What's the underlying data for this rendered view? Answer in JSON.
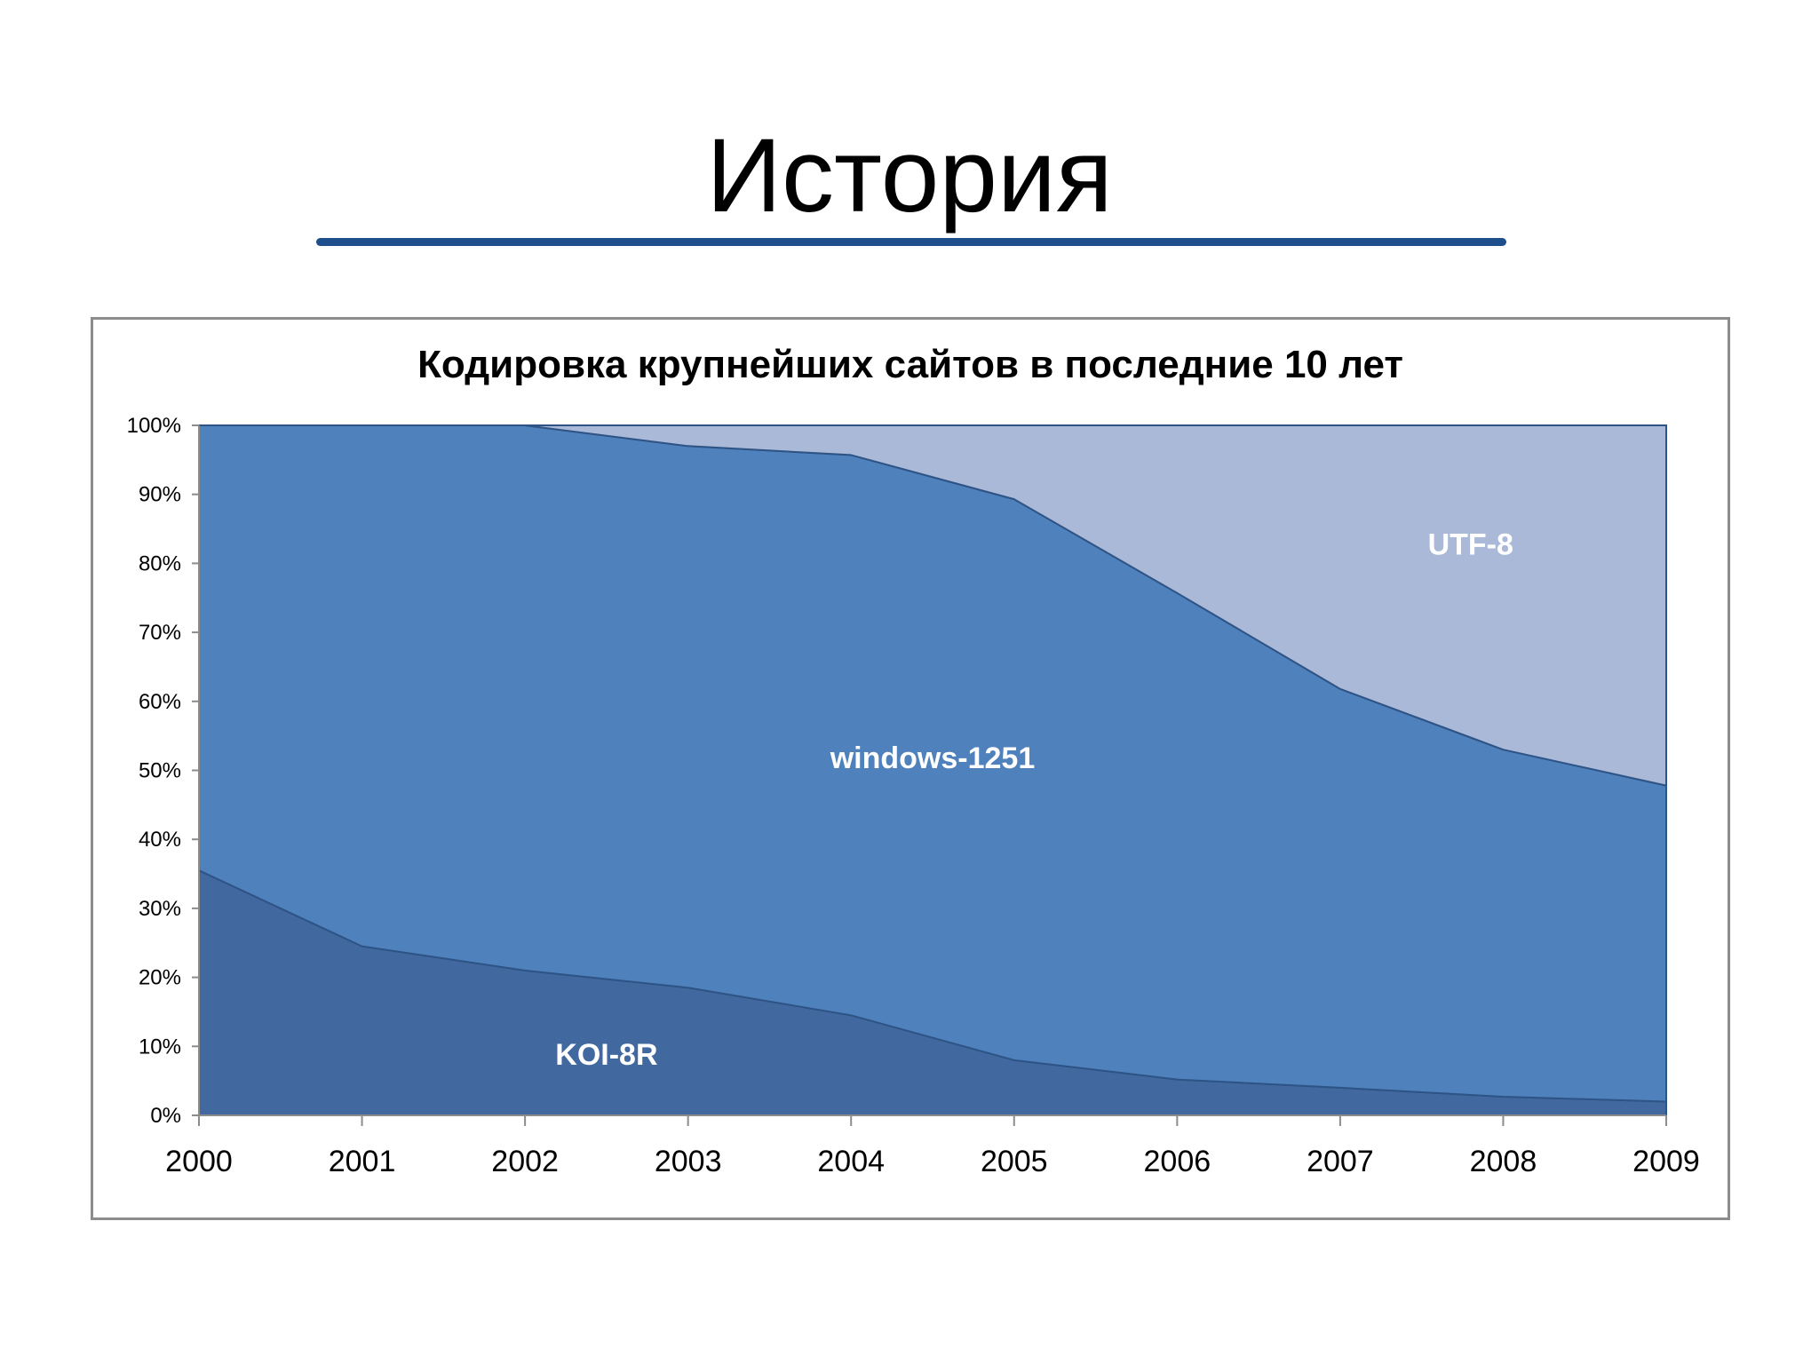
{
  "slide": {
    "title": "История"
  },
  "chart_data": {
    "type": "area",
    "stacked": "percent",
    "title": "Кодировка крупнейших сайтов в последние 10 лет",
    "xlabel": "",
    "ylabel": "",
    "ylim": [
      0,
      100
    ],
    "categories": [
      "2000",
      "2001",
      "2002",
      "2003",
      "2004",
      "2005",
      "2006",
      "2007",
      "2008",
      "2009"
    ],
    "y_ticks": [
      "0%",
      "10%",
      "20%",
      "30%",
      "40%",
      "50%",
      "60%",
      "70%",
      "80%",
      "90%",
      "100%"
    ],
    "series": [
      {
        "name": "KOI-8R",
        "values": [
          35.5,
          24.5,
          21,
          18.5,
          14.5,
          8,
          5.2,
          4,
          2.7,
          2
        ],
        "color": "#4169a0"
      },
      {
        "name": "windows-1251",
        "values": [
          64.5,
          75.5,
          79,
          78.5,
          81.2,
          81.3,
          70.5,
          57.8,
          50.3,
          45.8
        ],
        "color": "#4f81bd"
      },
      {
        "name": "UTF-8",
        "values": [
          0,
          0,
          0,
          3,
          4.3,
          10.7,
          24.3,
          38.2,
          47,
          52.2
        ],
        "color": "#abb9d9"
      }
    ],
    "grid": false,
    "legend": "none"
  }
}
